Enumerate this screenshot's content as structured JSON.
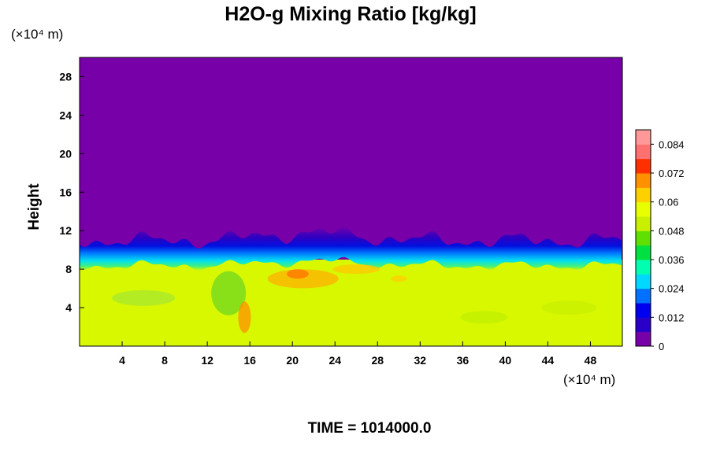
{
  "chart_data": {
    "type": "heatmap",
    "title": "H2O-g Mixing Ratio [kg/kg]",
    "ylabel": "Height",
    "y_unit": "(×10⁴ m)",
    "x_unit": "(×10⁴ m)",
    "x_ticks": [
      4,
      8,
      12,
      16,
      20,
      24,
      28,
      32,
      36,
      40,
      44,
      48
    ],
    "y_ticks": [
      4,
      8,
      12,
      16,
      20,
      24,
      28
    ],
    "xlim": [
      0,
      51
    ],
    "ylim": [
      0,
      30
    ],
    "colorbar": {
      "ticks": [
        0,
        0.012,
        0.024,
        0.036,
        0.048,
        0.06,
        0.072,
        0.084
      ],
      "tick_labels": [
        "0",
        "0.012",
        "0.024",
        "0.036",
        "0.048",
        "0.06",
        "0.072",
        "0.084"
      ],
      "range": [
        0,
        0.09
      ],
      "colors": [
        "#7800a8",
        "#2a00c8",
        "#0000f0",
        "#0070ff",
        "#00d8ff",
        "#00ffb0",
        "#00e040",
        "#60e000",
        "#c8f000",
        "#e8ff00",
        "#ffd000",
        "#ff9000",
        "#ff3000",
        "#ff7070",
        "#ff9898"
      ]
    },
    "field_summary": {
      "upper_value": 0,
      "lower_value": 0.058,
      "interface_height": 9.5,
      "moist_band_x": [
        17,
        29
      ],
      "moist_band_value": 0.07
    }
  },
  "footer": {
    "time_label": "TIME = 1014000.0"
  }
}
